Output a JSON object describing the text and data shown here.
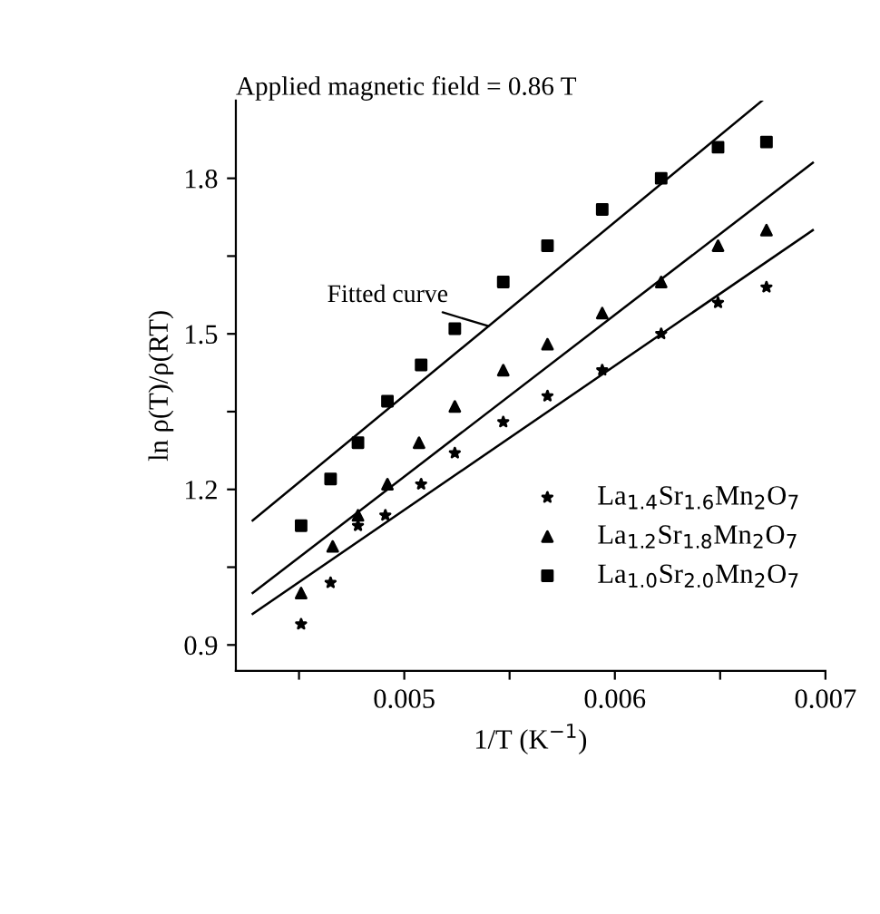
{
  "chart_data": {
    "type": "scatter",
    "xlabel": "1/T (K$^{−1}$)",
    "ylabel": "ln ρ(T)/ρ(RT)",
    "xlim": [
      0.0042,
      0.007
    ],
    "ylim": [
      0.85,
      1.95
    ],
    "xticks": [
      {
        "value": 0.0045,
        "label": null
      },
      0.005,
      {
        "value": 0.0055,
        "label": null
      },
      0.006,
      {
        "value": 0.0065,
        "label": null
      },
      0.007
    ],
    "yticks": [
      0.9,
      {
        "value": 1.05,
        "label": null
      },
      1.2,
      {
        "value": 1.35,
        "label": null
      },
      1.5,
      {
        "value": 1.65,
        "label": null
      },
      1.8
    ],
    "grid": false,
    "legend": "bottom right",
    "annotations": [
      "Applied magnetic field = 0.86 T",
      {
        "text": "Fitted curve",
        "x": 0.0054,
        "y": 1.515
      }
    ],
    "series": [
      {
        "name": "La$_{1.4}$Sr$_{1.6}$Mn$_{2}$O$_{7}$",
        "color": "#000000",
        "marker": "star",
        "x": [
          0.00451,
          0.00465,
          0.00478,
          0.00491,
          0.00508,
          0.00524,
          0.00547,
          0.00568,
          0.00594,
          0.00622,
          0.00649,
          0.00672
        ],
        "values": [
          0.94,
          1.02,
          1.13,
          1.15,
          1.21,
          1.27,
          1.33,
          1.38,
          1.43,
          1.5,
          1.56,
          1.59
        ]
      },
      {
        "name": "La$_{1.2}$Sr$_{1.8}$Mn$_{2}$O$_{7}$",
        "color": "#000000",
        "marker": "triangle",
        "x": [
          0.00451,
          0.00466,
          0.00478,
          0.00492,
          0.00507,
          0.00524,
          0.00547,
          0.00568,
          0.00594,
          0.00622,
          0.00649,
          0.00672
        ],
        "values": [
          1.0,
          1.09,
          1.15,
          1.21,
          1.29,
          1.36,
          1.43,
          1.48,
          1.54,
          1.6,
          1.67,
          1.7
        ]
      },
      {
        "name": "La$_{1.0}$Sr$_{2.0}$Mn$_{2}$O$_{7}$",
        "color": "#000000",
        "marker": "square",
        "x": [
          0.00451,
          0.00465,
          0.00478,
          0.00492,
          0.00508,
          0.00524,
          0.00547,
          0.00568,
          0.00594,
          0.00622,
          0.00649,
          0.00672
        ],
        "values": [
          1.13,
          1.22,
          1.29,
          1.37,
          1.44,
          1.51,
          1.6,
          1.67,
          1.74,
          1.8,
          1.86,
          1.87
        ]
      },
      {
        "type": "line",
        "color": "#000000",
        "marker": "none",
        "x": [
          0.00428,
          0.00694
        ],
        "values": [
          0.96,
          1.7
        ]
      },
      {
        "type": "line",
        "color": "#000000",
        "marker": "none",
        "x": [
          0.00428,
          0.00694
        ],
        "values": [
          1.0,
          1.83
        ]
      },
      {
        "type": "line",
        "color": "#000000",
        "marker": "none",
        "x": [
          0.00428,
          0.0067
        ],
        "values": [
          1.14,
          1.95
        ]
      }
    ]
  }
}
